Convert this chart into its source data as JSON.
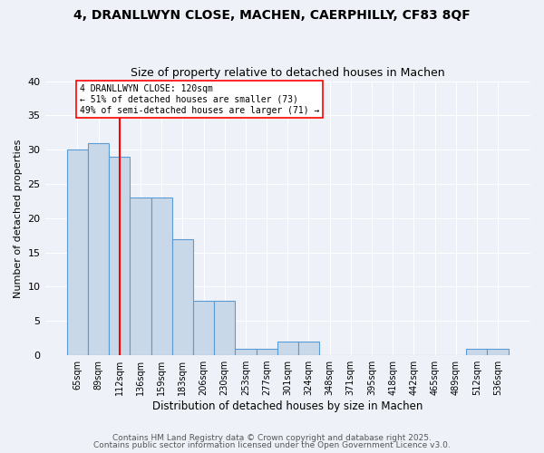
{
  "title1": "4, DRANLLWYN CLOSE, MACHEN, CAERPHILLY, CF83 8QF",
  "title2": "Size of property relative to detached houses in Machen",
  "xlabel": "Distribution of detached houses by size in Machen",
  "ylabel": "Number of detached properties",
  "categories": [
    "65sqm",
    "89sqm",
    "112sqm",
    "136sqm",
    "159sqm",
    "183sqm",
    "206sqm",
    "230sqm",
    "253sqm",
    "277sqm",
    "301sqm",
    "324sqm",
    "348sqm",
    "371sqm",
    "395sqm",
    "418sqm",
    "442sqm",
    "465sqm",
    "489sqm",
    "512sqm",
    "536sqm"
  ],
  "values": [
    30,
    31,
    29,
    23,
    23,
    17,
    8,
    8,
    1,
    1,
    2,
    2,
    0,
    0,
    0,
    0,
    0,
    0,
    0,
    1,
    1
  ],
  "bar_color": "#c8d8e8",
  "bar_edge_color": "#5b9bd5",
  "red_line_index": 2,
  "annotation_text": "4 DRANLLWYN CLOSE: 120sqm\n← 51% of detached houses are smaller (73)\n49% of semi-detached houses are larger (71) →",
  "ylim": [
    0,
    40
  ],
  "yticks": [
    0,
    5,
    10,
    15,
    20,
    25,
    30,
    35,
    40
  ],
  "footer1": "Contains HM Land Registry data © Crown copyright and database right 2025.",
  "footer2": "Contains public sector information licensed under the Open Government Licence v3.0.",
  "background_color": "#eef2f8",
  "plot_bg_color": "#eef2f8",
  "grid_color": "#ffffff",
  "title_fontsize": 10,
  "subtitle_fontsize": 9,
  "bar_width": 1.0
}
